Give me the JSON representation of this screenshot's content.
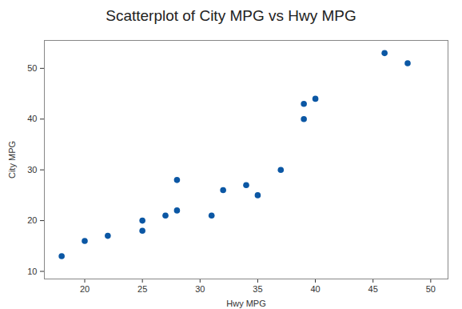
{
  "chart_data": {
    "type": "scatter",
    "title": "Scatterplot of City MPG vs Hwy MPG",
    "x_label": "Hwy MPG",
    "y_label": "City MPG",
    "x": [
      18,
      20,
      22,
      25,
      25,
      27,
      28,
      28,
      31,
      32,
      34,
      35,
      37,
      39,
      39,
      40,
      46,
      48
    ],
    "values": [
      13,
      16,
      17,
      20,
      18,
      21,
      28,
      22,
      21,
      26,
      27,
      25,
      30,
      43,
      40,
      44,
      53,
      51
    ],
    "color": "#0b57a4",
    "marker": "circle",
    "xlim": [
      16.5,
      51.5
    ],
    "xticks": [
      20,
      25,
      30,
      35,
      40,
      45,
      50
    ],
    "ylim": [
      8.5,
      55.5
    ],
    "yticks": [
      10,
      20,
      30,
      40,
      50
    ],
    "grid": false
  }
}
